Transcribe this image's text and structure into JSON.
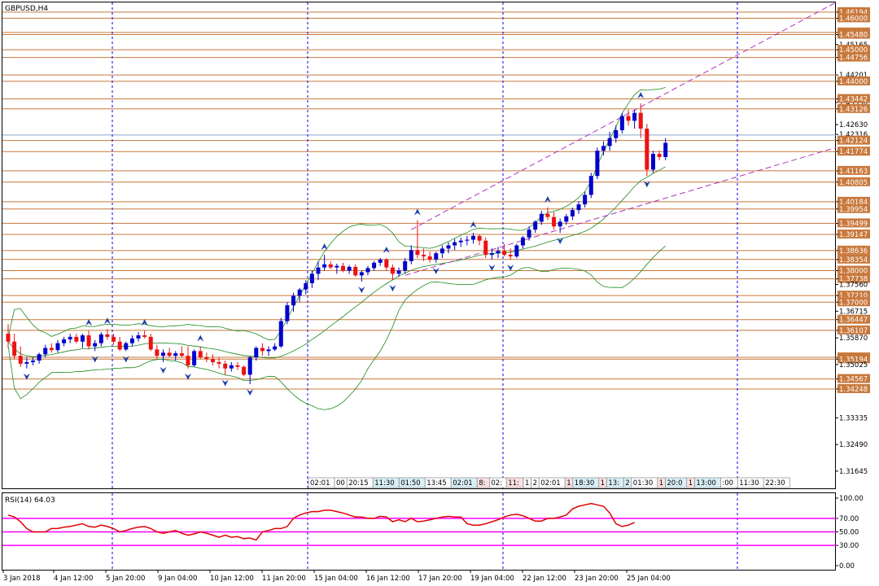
{
  "window": {
    "title": "GBPUSD,H4"
  },
  "rsi": {
    "label": "RSI(14) 64.03",
    "axis_labels": [
      "100.00",
      "70.00",
      "50.00",
      "30.00",
      "0.00"
    ],
    "levels": [
      70,
      50,
      30
    ],
    "level_color": "#ff00ff",
    "line_color": "#e00000",
    "values": [
      75,
      72,
      65,
      55,
      50,
      50,
      50,
      55,
      55,
      57,
      58,
      60,
      62,
      58,
      57,
      60,
      58,
      55,
      50,
      52,
      55,
      57,
      58,
      55,
      50,
      48,
      50,
      52,
      48,
      45,
      47,
      50,
      48,
      45,
      42,
      45,
      42,
      43,
      40,
      41,
      38,
      50,
      52,
      55,
      55,
      58,
      70,
      75,
      78,
      80,
      80,
      82,
      82,
      80,
      78,
      75,
      72,
      72,
      70,
      70,
      73,
      72,
      65,
      68,
      65,
      70,
      65,
      66,
      68,
      70,
      72,
      73,
      72,
      72,
      62,
      60,
      60,
      62,
      65,
      68,
      72,
      75,
      76,
      74,
      70,
      66,
      66,
      70,
      70,
      72,
      75,
      84,
      88,
      90,
      92,
      90,
      88,
      78,
      62,
      58,
      60,
      64
    ]
  },
  "chart_data": {
    "type": "candlestick",
    "symbol": "GBPUSD",
    "timeframe": "H4",
    "ylim": [
      1.311,
      1.465
    ],
    "candles": [
      [
        1.36,
        1.363,
        1.3555,
        1.3575
      ],
      [
        1.3575,
        1.36,
        1.352,
        1.353
      ],
      [
        1.353,
        1.356,
        1.3495,
        1.3505
      ],
      [
        1.3505,
        1.3525,
        1.349,
        1.351
      ],
      [
        1.351,
        1.3525,
        1.35,
        1.3515
      ],
      [
        1.3515,
        1.354,
        1.3505,
        1.3535
      ],
      [
        1.3535,
        1.3565,
        1.3525,
        1.3555
      ],
      [
        1.3555,
        1.357,
        1.354,
        1.3548
      ],
      [
        1.3548,
        1.358,
        1.354,
        1.357
      ],
      [
        1.357,
        1.359,
        1.356,
        1.3582
      ],
      [
        1.3582,
        1.36,
        1.357,
        1.359
      ],
      [
        1.359,
        1.36,
        1.357,
        1.3575
      ],
      [
        1.3575,
        1.36,
        1.3555,
        1.3595
      ],
      [
        1.3595,
        1.361,
        1.355,
        1.356
      ],
      [
        1.356,
        1.358,
        1.3545,
        1.357
      ],
      [
        1.357,
        1.3605,
        1.356,
        1.3598
      ],
      [
        1.3598,
        1.3615,
        1.358,
        1.359
      ],
      [
        1.359,
        1.36,
        1.3565,
        1.3575
      ],
      [
        1.3575,
        1.359,
        1.3545,
        1.355
      ],
      [
        1.355,
        1.3575,
        1.3545,
        1.357
      ],
      [
        1.357,
        1.3595,
        1.356,
        1.3585
      ],
      [
        1.3585,
        1.3605,
        1.3575,
        1.3595
      ],
      [
        1.3595,
        1.361,
        1.3585,
        1.359
      ],
      [
        1.359,
        1.36,
        1.3545,
        1.355
      ],
      [
        1.355,
        1.3565,
        1.352,
        1.353
      ],
      [
        1.353,
        1.355,
        1.351,
        1.354
      ],
      [
        1.354,
        1.3555,
        1.3525,
        1.353
      ],
      [
        1.353,
        1.3545,
        1.3515,
        1.3538
      ],
      [
        1.3538,
        1.356,
        1.3525,
        1.353
      ],
      [
        1.353,
        1.356,
        1.349,
        1.35
      ],
      [
        1.35,
        1.355,
        1.3495,
        1.3545
      ],
      [
        1.3545,
        1.356,
        1.352,
        1.3525
      ],
      [
        1.3525,
        1.354,
        1.351,
        1.352
      ],
      [
        1.352,
        1.3535,
        1.35,
        1.351
      ],
      [
        1.351,
        1.3525,
        1.349,
        1.3505
      ],
      [
        1.3505,
        1.3515,
        1.347,
        1.349
      ],
      [
        1.349,
        1.351,
        1.348,
        1.35
      ],
      [
        1.35,
        1.351,
        1.3485,
        1.3495
      ],
      [
        1.3495,
        1.35,
        1.3465,
        1.347
      ],
      [
        1.347,
        1.353,
        1.344,
        1.3525
      ],
      [
        1.3525,
        1.356,
        1.3515,
        1.3555
      ],
      [
        1.3555,
        1.357,
        1.353,
        1.3545
      ],
      [
        1.3545,
        1.356,
        1.353,
        1.355
      ],
      [
        1.355,
        1.357,
        1.3545,
        1.356
      ],
      [
        1.356,
        1.365,
        1.3555,
        1.364
      ],
      [
        1.364,
        1.37,
        1.363,
        1.369
      ],
      [
        1.369,
        1.373,
        1.367,
        1.372
      ],
      [
        1.372,
        1.3745,
        1.37,
        1.374
      ],
      [
        1.374,
        1.377,
        1.3725,
        1.376
      ],
      [
        1.376,
        1.38,
        1.3745,
        1.379
      ],
      [
        1.379,
        1.383,
        1.377,
        1.381
      ],
      [
        1.381,
        1.385,
        1.38,
        1.382
      ],
      [
        1.382,
        1.383,
        1.3805,
        1.381
      ],
      [
        1.381,
        1.3822,
        1.379,
        1.3815
      ],
      [
        1.3815,
        1.3825,
        1.3795,
        1.38
      ],
      [
        1.38,
        1.3818,
        1.379,
        1.3812
      ],
      [
        1.3812,
        1.382,
        1.378,
        1.3785
      ],
      [
        1.3785,
        1.38,
        1.3765,
        1.3795
      ],
      [
        1.3795,
        1.3815,
        1.3785,
        1.3808
      ],
      [
        1.3808,
        1.383,
        1.38,
        1.3825
      ],
      [
        1.3825,
        1.384,
        1.3815,
        1.3835
      ],
      [
        1.3835,
        1.384,
        1.38,
        1.381
      ],
      [
        1.381,
        1.382,
        1.377,
        1.379
      ],
      [
        1.379,
        1.381,
        1.378,
        1.38
      ],
      [
        1.38,
        1.384,
        1.379,
        1.383
      ],
      [
        1.383,
        1.388,
        1.382,
        1.3865
      ],
      [
        1.3865,
        1.396,
        1.384,
        1.385
      ],
      [
        1.385,
        1.387,
        1.383,
        1.3845
      ],
      [
        1.3845,
        1.386,
        1.3825,
        1.3835
      ],
      [
        1.3835,
        1.386,
        1.3825,
        1.3855
      ],
      [
        1.3855,
        1.388,
        1.384,
        1.387
      ],
      [
        1.387,
        1.389,
        1.3855,
        1.388
      ],
      [
        1.388,
        1.39,
        1.3865,
        1.389
      ],
      [
        1.389,
        1.3905,
        1.3875,
        1.3895
      ],
      [
        1.3895,
        1.391,
        1.388,
        1.3898
      ],
      [
        1.3898,
        1.392,
        1.3885,
        1.391
      ],
      [
        1.391,
        1.3915,
        1.388,
        1.3895
      ],
      [
        1.3895,
        1.3905,
        1.384,
        1.385
      ],
      [
        1.385,
        1.387,
        1.3835,
        1.3855
      ],
      [
        1.3855,
        1.3875,
        1.384,
        1.3862
      ],
      [
        1.3862,
        1.3885,
        1.3845,
        1.385
      ],
      [
        1.385,
        1.387,
        1.3835,
        1.3845
      ],
      [
        1.3845,
        1.3885,
        1.384,
        1.388
      ],
      [
        1.388,
        1.391,
        1.387,
        1.3905
      ],
      [
        1.3905,
        1.394,
        1.3895,
        1.393
      ],
      [
        1.393,
        1.396,
        1.392,
        1.3955
      ],
      [
        1.3955,
        1.399,
        1.3945,
        1.398
      ],
      [
        1.398,
        1.4,
        1.396,
        1.397
      ],
      [
        1.397,
        1.3985,
        1.393,
        1.394
      ],
      [
        1.394,
        1.3965,
        1.392,
        1.3955
      ],
      [
        1.3955,
        1.398,
        1.3945,
        1.3972
      ],
      [
        1.3972,
        1.4,
        1.396,
        1.3992
      ],
      [
        1.3992,
        1.402,
        1.398,
        1.401
      ],
      [
        1.401,
        1.405,
        1.4,
        1.404
      ],
      [
        1.404,
        1.411,
        1.403,
        1.41
      ],
      [
        1.41,
        1.419,
        1.409,
        1.418
      ],
      [
        1.418,
        1.421,
        1.4165,
        1.4195
      ],
      [
        1.4195,
        1.424,
        1.418,
        1.422
      ],
      [
        1.422,
        1.426,
        1.4205,
        1.4245
      ],
      [
        1.4245,
        1.43,
        1.4235,
        1.429
      ],
      [
        1.429,
        1.431,
        1.426,
        1.4275
      ],
      [
        1.4275,
        1.431,
        1.425,
        1.43
      ],
      [
        1.43,
        1.433,
        1.422,
        1.425
      ],
      [
        1.425,
        1.4265,
        1.41,
        1.412
      ],
      [
        1.412,
        1.418,
        1.411,
        1.417
      ],
      [
        1.417,
        1.418,
        1.415,
        1.416
      ],
      [
        1.416,
        1.422,
        1.415,
        1.4205
      ]
    ],
    "grid_levels": [
      1.46194,
      1.46,
      1.4555,
      1.4548,
      1.45,
      1.44756,
      1.442,
      1.44,
      1.43442,
      1.43126,
      1.42124,
      1.41774,
      1.41163,
      1.40805,
      1.40184,
      1.39954,
      1.39499,
      1.39147,
      1.38636,
      1.38354,
      1.38,
      1.37738,
      1.3721,
      1.37,
      1.36447,
      1.36107,
      1.35252,
      1.35194,
      1.34567,
      1.34248
    ],
    "axis_labels": [
      "1.46194",
      "1.46000",
      "1.45550",
      "1.45480",
      "1.45165",
      "1.45000",
      "1.44756",
      "1.44201",
      "1.43330",
      "1.44000",
      "1.43442",
      "1.43126",
      "1.42630",
      "1.42316",
      "1.42124",
      "1.41774",
      "1.41163",
      "1.40805",
      "1.40184",
      "1.39954",
      "1.39499",
      "1.39147",
      "1.38636",
      "1.38354",
      "1.38000",
      "1.37738",
      "1.37560",
      "1.37210",
      "1.37000",
      "1.36715",
      "1.36447",
      "1.36107",
      "1.35870",
      "1.35252",
      "1.35194",
      "1.35025",
      "1.34567",
      "1.34248",
      "1.33335",
      "1.32490",
      "1.31645"
    ],
    "x_labels": [
      "3 Jan 2018",
      "4 Jan 12:00",
      "5 Jan 20:00",
      "9 Jan 04:00",
      "10 Jan 12:00",
      "11 Jan 20:00",
      "15 Jan 04:00",
      "16 Jan 12:00",
      "17 Jan 20:00",
      "19 Jan 04:00",
      "22 Jan 12:00",
      "23 Jan 20:00",
      "25 Jan 04:00"
    ],
    "time_boxes": [
      "02:01",
      "00",
      "20:15",
      "11:30",
      "01:50",
      "13:45",
      "02:01",
      "8:",
      "02:",
      "11:",
      "1",
      "2",
      "02:01",
      "1",
      "18:30",
      "1",
      "13:",
      "2",
      "01:30",
      "1",
      "20:0",
      "1",
      "13:00",
      ":00",
      "11:30",
      "22:30"
    ],
    "up_color": "#0000cc",
    "down_color": "#ee1111",
    "level_line_color": "#c8783c",
    "band_color": "#1a8a1a",
    "channel_color": "#b030c0",
    "separator_color": "#0000ee"
  }
}
